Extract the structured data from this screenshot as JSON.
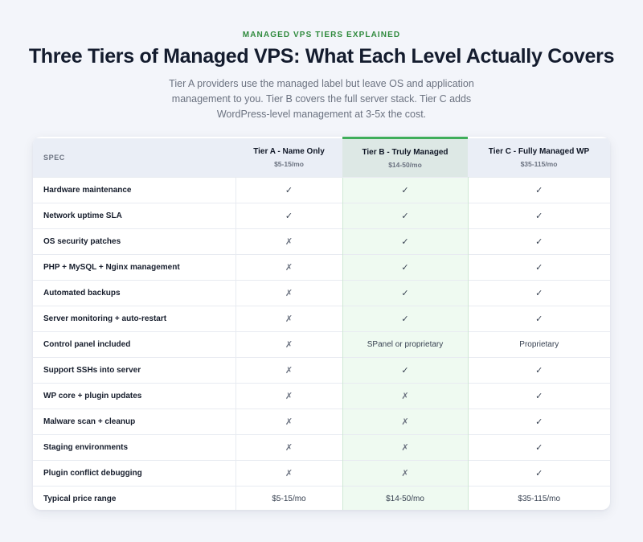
{
  "header": {
    "eyebrow": "MANAGED VPS TIERS EXPLAINED",
    "title": "Three Tiers of Managed VPS: What Each Level Actually Covers",
    "subtitle": "Tier A providers use the managed label but leave OS and application management to you. Tier B covers the full server stack. Tier C adds WordPress-level management at 3-5x the cost."
  },
  "table": {
    "spec_header": "SPEC",
    "tiers": [
      {
        "name": "Tier A - Name Only",
        "price": "$5-15/mo"
      },
      {
        "name": "Tier B - Truly Managed",
        "price": "$14-50/mo"
      },
      {
        "name": "Tier C - Fully Managed WP",
        "price": "$35-115/mo"
      }
    ],
    "rows": [
      {
        "label": "Hardware maintenance",
        "cells": [
          "✓",
          "✓",
          "✓"
        ]
      },
      {
        "label": "Network uptime SLA",
        "cells": [
          "✓",
          "✓",
          "✓"
        ]
      },
      {
        "label": "OS security patches",
        "cells": [
          "✗",
          "✓",
          "✓"
        ]
      },
      {
        "label": "PHP + MySQL + Nginx management",
        "cells": [
          "✗",
          "✓",
          "✓"
        ]
      },
      {
        "label": "Automated backups",
        "cells": [
          "✗",
          "✓",
          "✓"
        ]
      },
      {
        "label": "Server monitoring + auto-restart",
        "cells": [
          "✗",
          "✓",
          "✓"
        ]
      },
      {
        "label": "Control panel included",
        "cells": [
          "✗",
          "SPanel or proprietary",
          "Proprietary"
        ]
      },
      {
        "label": "Support SSHs into server",
        "cells": [
          "✗",
          "✓",
          "✓"
        ]
      },
      {
        "label": "WP core + plugin updates",
        "cells": [
          "✗",
          "✗",
          "✓"
        ]
      },
      {
        "label": "Malware scan + cleanup",
        "cells": [
          "✗",
          "✗",
          "✓"
        ]
      },
      {
        "label": "Staging environments",
        "cells": [
          "✗",
          "✗",
          "✓"
        ]
      },
      {
        "label": "Plugin conflict debugging",
        "cells": [
          "✗",
          "✗",
          "✓"
        ]
      },
      {
        "label": "Typical price range",
        "cells": [
          "$5-15/mo",
          "$14-50/mo",
          "$35-115/mo"
        ]
      }
    ]
  },
  "colors": {
    "accent_green": "#3fae5a",
    "highlight_column": "#effaf1",
    "header_bg": "#eaeef6"
  }
}
